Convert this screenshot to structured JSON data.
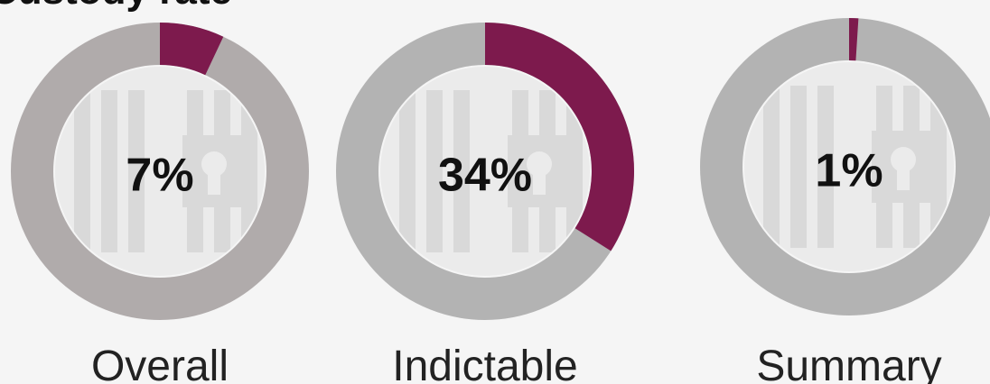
{
  "title": "Custody rate",
  "chart_data": [
    {
      "type": "donut",
      "name": "Overall",
      "value": 7,
      "value_label": "7%",
      "range": [
        0,
        100
      ],
      "color": "#7d1a4d",
      "track_color": "#b0abab"
    },
    {
      "type": "donut",
      "name": "Indictable",
      "value": 34,
      "value_label": "34%",
      "range": [
        0,
        100
      ],
      "color": "#7d1a4d",
      "track_color": "#b3b3b3"
    },
    {
      "type": "donut",
      "name": "Summary",
      "value": 1,
      "value_label": "1%",
      "range": [
        0,
        100
      ],
      "color": "#7d1a4d",
      "track_color": "#b3b3b3"
    }
  ]
}
